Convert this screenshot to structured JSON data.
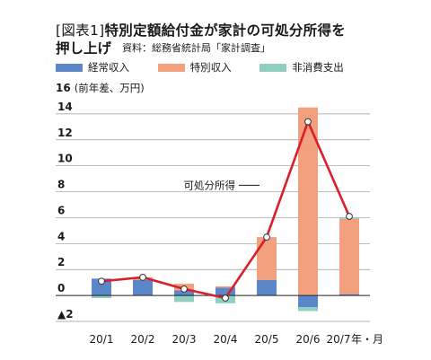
{
  "header": {
    "figure_no": "[図表1]",
    "title_line1": "特別定額給付金が家計の可処分所得を",
    "title_line2": "押し上げ",
    "source": "資料：総務省統計局「家計調査」"
  },
  "colors": {
    "regular_income": "#5b87c8",
    "special_income": "#f2a07e",
    "non_consumption": "#8ecfc2",
    "disposable_line": "#d9202a"
  },
  "chart_data": {
    "type": "bar",
    "stacked": true,
    "categories": [
      "20/1",
      "20/2",
      "20/3",
      "20/4",
      "20/5",
      "20/6",
      "20/7"
    ],
    "x_unit_label": "年・月",
    "y_axis_label": "(前年差、万円)",
    "ylim": [
      -2,
      16
    ],
    "y_ticks": [
      {
        "v": 16,
        "label": "16"
      },
      {
        "v": 14,
        "label": "14"
      },
      {
        "v": 12,
        "label": "12"
      },
      {
        "v": 10,
        "label": "10"
      },
      {
        "v": 8,
        "label": "8"
      },
      {
        "v": 6,
        "label": "6"
      },
      {
        "v": 4,
        "label": "4"
      },
      {
        "v": 2,
        "label": "2"
      },
      {
        "v": 0,
        "label": "0"
      },
      {
        "v": -2,
        "label": "▲2"
      }
    ],
    "grid": true,
    "legend_position": "top-left",
    "series": [
      {
        "name": "経常収入",
        "key": "regular_income",
        "values": [
          1.3,
          1.2,
          0.4,
          0.6,
          1.2,
          -0.9,
          0.1
        ]
      },
      {
        "name": "特別収入",
        "key": "special_income",
        "values": [
          0.0,
          0.2,
          0.5,
          0.1,
          3.3,
          14.5,
          5.8
        ]
      },
      {
        "name": "非消費支出",
        "key": "non_consumption",
        "values": [
          -0.2,
          0.0,
          -0.5,
          -0.6,
          0.0,
          -0.3,
          0.1
        ]
      }
    ],
    "line_series": {
      "name": "可処分所得",
      "values": [
        1.1,
        1.4,
        0.5,
        -0.2,
        4.5,
        13.4,
        6.1
      ]
    }
  }
}
